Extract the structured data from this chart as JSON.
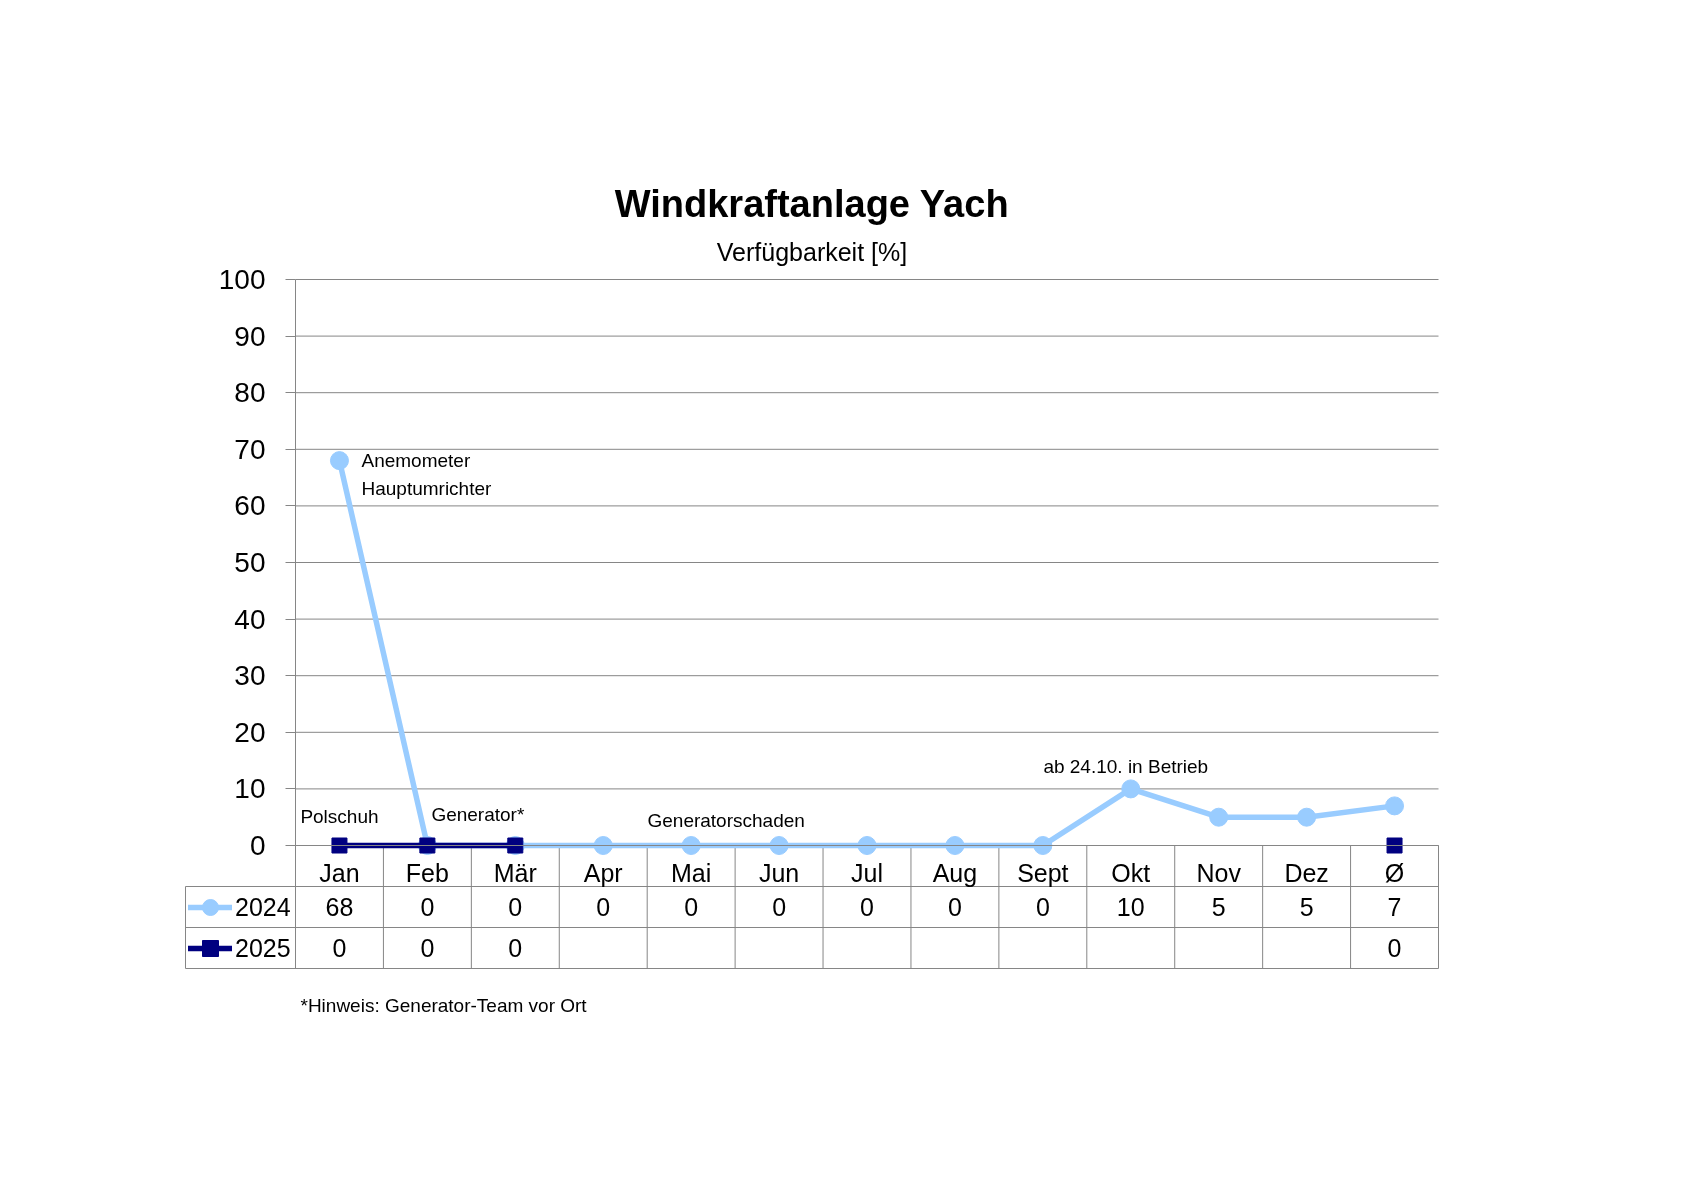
{
  "chart_data": {
    "type": "line",
    "title": "Windkraftanlage Yach",
    "subtitle": "Verfügbarkeit [%]",
    "categories": [
      "Jan",
      "Feb",
      "Mär",
      "Apr",
      "Mai",
      "Jun",
      "Jul",
      "Aug",
      "Sept",
      "Okt",
      "Nov",
      "Dez",
      "Ø"
    ],
    "series": [
      {
        "name": "2024",
        "color": "#99ccff",
        "marker": "circle",
        "values": [
          68,
          0,
          0,
          0,
          0,
          0,
          0,
          0,
          0,
          10,
          5,
          5,
          7
        ]
      },
      {
        "name": "2025",
        "color": "#000080",
        "marker": "square",
        "values": [
          0,
          0,
          0,
          null,
          null,
          null,
          null,
          null,
          null,
          null,
          null,
          null,
          0
        ]
      }
    ],
    "ylim": [
      0,
      100
    ],
    "yticks": [
      0,
      10,
      20,
      30,
      40,
      50,
      60,
      70,
      80,
      90,
      100
    ],
    "grid": "y",
    "legend": "bottom left",
    "data_labels": true,
    "annotations": [
      {
        "text": "Anemometer\nHauptumrichter",
        "x": "Jan",
        "y": 68
      },
      {
        "text": "Polschuh",
        "x": "Jan",
        "y": 0
      },
      {
        "text": "Generator*",
        "x": "Feb",
        "y": 0
      },
      {
        "text": "Generatorschaden",
        "x": "Mai",
        "y": 0
      },
      {
        "text": "ab 24.10. in Betrieb",
        "x": "Okt",
        "y": 10
      },
      "*Hinweis: Generator-Team vor Ort"
    ]
  }
}
